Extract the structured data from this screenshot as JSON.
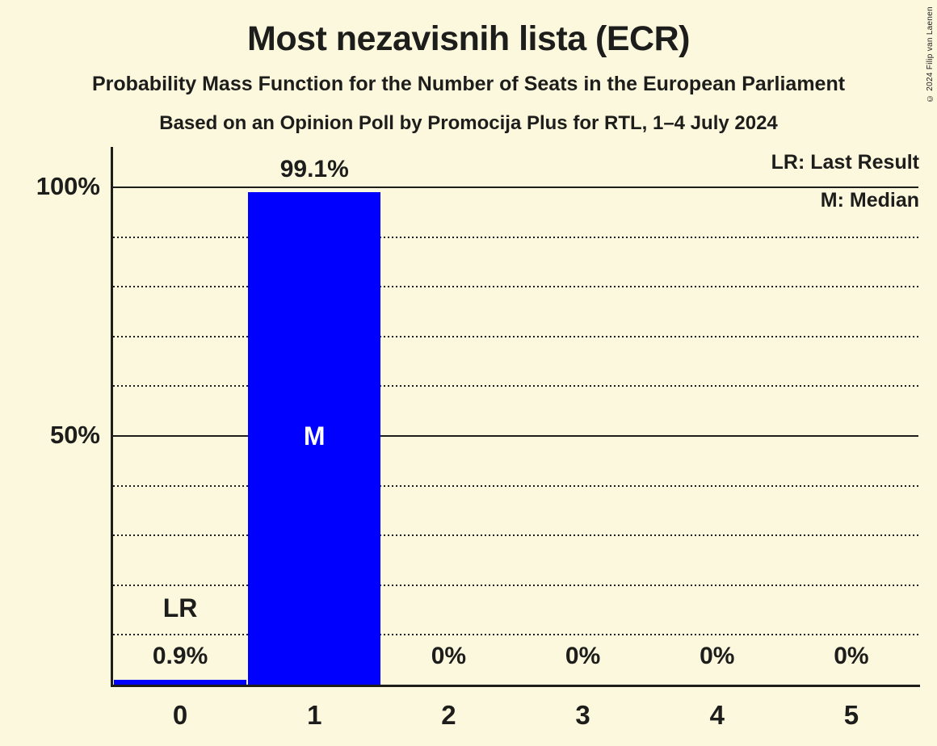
{
  "page": {
    "title": "Most nezavisnih lista (ECR)",
    "subtitle1": "Probability Mass Function for the Number of Seats in the European Parliament",
    "subtitle2": "Based on an Opinion Poll by Promocija Plus for RTL, 1–4 July 2024",
    "copyright": "© 2024 Filip van Laenen"
  },
  "legend": {
    "lr": "LR: Last Result",
    "m": "M: Median"
  },
  "y_axis": {
    "ticks": [
      {
        "label": "100%",
        "pct": 100
      },
      {
        "label": "50%",
        "pct": 50
      }
    ]
  },
  "chart_data": {
    "type": "bar",
    "title": "Most nezavisnih lista (ECR)",
    "categories": [
      "0",
      "1",
      "2",
      "3",
      "4",
      "5"
    ],
    "values": [
      0.9,
      99.1,
      0,
      0,
      0,
      0
    ],
    "value_labels": [
      "0.9%",
      "99.1%",
      "0%",
      "0%",
      "0%",
      "0%"
    ],
    "xlabel": "",
    "ylabel": "",
    "ylim": [
      0,
      100
    ],
    "gridline_step_pct": 10,
    "solid_gridlines_pct": [
      50,
      100
    ],
    "grid": true,
    "legend_position": "top-right",
    "annotations": {
      "last_result": {
        "label": "LR",
        "category": "0"
      },
      "median": {
        "label": "M",
        "category": "1",
        "at_pct": 50
      }
    },
    "bar_color": "#0000ff",
    "background_color": "#fcf8dd",
    "ink_color": "#1d1d1b",
    "median_label_color": "#ffffff"
  }
}
